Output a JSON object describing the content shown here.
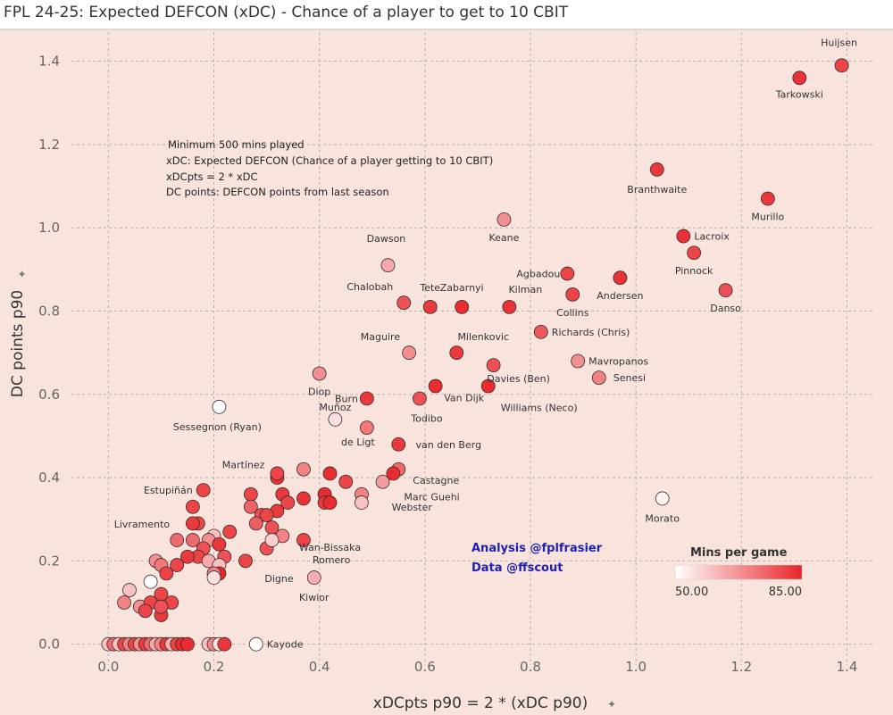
{
  "title": "FPL 24-25: Expected DEFCON (xDC) - Chance of a player to get to 10 CBIT",
  "notes": [
    "Minimum 500 mins played",
    "xDC: Expected DEFCON (Chance of a player getting to 10 CBIT)",
    "xDCpts = 2 * xDC",
    "DC points: DEFCON points from last season"
  ],
  "credits": [
    "Analysis @fplfrasier",
    "Data @ffscout"
  ],
  "legend": {
    "title": "Mins per game",
    "min_label": "50.00",
    "max_label": "85.00",
    "color_min": "#ffffff",
    "color_max": "#e8262a"
  },
  "chart_data": {
    "type": "scatter",
    "xlabel": "xDCpts p90 = 2 * (xDC p90)",
    "ylabel": "DC points p90",
    "xlim": [
      -0.07,
      1.45
    ],
    "ylim": [
      -0.05,
      1.47
    ],
    "x_ticks": [
      "0.0",
      "0.2",
      "0.4",
      "0.6",
      "0.8",
      "1.0",
      "1.2",
      "1.4"
    ],
    "y_ticks": [
      "0.0",
      "0.2",
      "0.4",
      "0.6",
      "0.8",
      "1.0",
      "1.2",
      "1.4"
    ],
    "grid": true,
    "color_by": "Mins per game",
    "color_range": [
      50,
      85
    ],
    "labeled_points": [
      {
        "name": "Huijsen",
        "x": 1.39,
        "y": 1.39,
        "mins": 80
      },
      {
        "name": "Tarkowski",
        "x": 1.31,
        "y": 1.36,
        "mins": 83
      },
      {
        "name": "Branthwaite",
        "x": 1.04,
        "y": 1.14,
        "mins": 82
      },
      {
        "name": "Murillo",
        "x": 1.25,
        "y": 1.07,
        "mins": 82
      },
      {
        "name": "Keane",
        "x": 0.75,
        "y": 1.02,
        "mins": 68
      },
      {
        "name": "Lacroix",
        "x": 1.09,
        "y": 0.98,
        "mins": 83
      },
      {
        "name": "Pinnock",
        "x": 1.11,
        "y": 0.94,
        "mins": 80
      },
      {
        "name": "Dawson",
        "x": 0.53,
        "y": 0.91,
        "mins": 64
      },
      {
        "name": "Agbadou",
        "x": 0.87,
        "y": 0.89,
        "mins": 80
      },
      {
        "name": "Andersen",
        "x": 0.97,
        "y": 0.88,
        "mins": 83
      },
      {
        "name": "Danso",
        "x": 1.17,
        "y": 0.85,
        "mins": 78
      },
      {
        "name": "Collins",
        "x": 0.88,
        "y": 0.84,
        "mins": 80
      },
      {
        "name": "Chalobah",
        "x": 0.56,
        "y": 0.82,
        "mins": 78
      },
      {
        "name": "Tete",
        "x": 0.61,
        "y": 0.81,
        "mins": 82
      },
      {
        "name": "Zabarnyi",
        "x": 0.67,
        "y": 0.81,
        "mins": 84
      },
      {
        "name": "Kilman",
        "x": 0.76,
        "y": 0.81,
        "mins": 83
      },
      {
        "name": "Richards (Chris)",
        "x": 0.82,
        "y": 0.75,
        "mins": 77
      },
      {
        "name": "Maguire",
        "x": 0.57,
        "y": 0.7,
        "mins": 68
      },
      {
        "name": "Milenkovic",
        "x": 0.66,
        "y": 0.7,
        "mins": 82
      },
      {
        "name": "Mavropanos",
        "x": 0.89,
        "y": 0.68,
        "mins": 68
      },
      {
        "name": "Senesi",
        "x": 0.93,
        "y": 0.64,
        "mins": 70
      },
      {
        "name": "Davies (Ben)",
        "x": 0.73,
        "y": 0.67,
        "mins": 78
      },
      {
        "name": "Williams (Neco)",
        "x": 0.72,
        "y": 0.62,
        "mins": 84
      },
      {
        "name": "Diop",
        "x": 0.4,
        "y": 0.65,
        "mins": 68
      },
      {
        "name": "Burn",
        "x": 0.49,
        "y": 0.59,
        "mins": 82
      },
      {
        "name": "Todibo",
        "x": 0.59,
        "y": 0.59,
        "mins": 78
      },
      {
        "name": "Van Dijk",
        "x": 0.62,
        "y": 0.62,
        "mins": 84
      },
      {
        "name": "Sessegnon (Ryan)",
        "x": 0.21,
        "y": 0.57,
        "mins": 50
      },
      {
        "name": "de Ligt",
        "x": 0.49,
        "y": 0.52,
        "mins": 72
      },
      {
        "name": "van den Berg",
        "x": 0.55,
        "y": 0.48,
        "mins": 82
      },
      {
        "name": "Muñoz",
        "x": 0.43,
        "y": 0.54,
        "mins": 55
      },
      {
        "name": "Castagne",
        "x": 0.55,
        "y": 0.42,
        "mins": 74
      },
      {
        "name": "Marc Guehi",
        "x": 0.54,
        "y": 0.41,
        "mins": 84
      },
      {
        "name": "Webster",
        "x": 0.52,
        "y": 0.39,
        "mins": 66
      },
      {
        "name": "Martínez",
        "x": 0.32,
        "y": 0.41,
        "mins": 80
      },
      {
        "name": "Estupiñán",
        "x": 0.18,
        "y": 0.37,
        "mins": 80
      },
      {
        "name": "Wan-Bissaka",
        "x": 0.42,
        "y": 0.34,
        "mins": 84
      },
      {
        "name": "Morato",
        "x": 1.05,
        "y": 0.35,
        "mins": 52
      },
      {
        "name": "Livramento",
        "x": 0.13,
        "y": 0.25,
        "mins": 74
      },
      {
        "name": "Romero",
        "x": 0.37,
        "y": 0.25,
        "mins": 80
      },
      {
        "name": "Digne",
        "x": 0.31,
        "y": 0.25,
        "mins": 58
      },
      {
        "name": "Kiwior",
        "x": 0.39,
        "y": 0.16,
        "mins": 63
      },
      {
        "name": "Kayode",
        "x": 0.28,
        "y": 0.0,
        "mins": 50
      }
    ],
    "unlabeled_points": [
      {
        "x": 0.32,
        "y": 0.4,
        "mins": 83
      },
      {
        "x": 0.37,
        "y": 0.42,
        "mins": 70
      },
      {
        "x": 0.42,
        "y": 0.41,
        "mins": 84
      },
      {
        "x": 0.45,
        "y": 0.39,
        "mins": 80
      },
      {
        "x": 0.27,
        "y": 0.36,
        "mins": 80
      },
      {
        "x": 0.33,
        "y": 0.36,
        "mins": 82
      },
      {
        "x": 0.37,
        "y": 0.35,
        "mins": 83
      },
      {
        "x": 0.41,
        "y": 0.36,
        "mins": 84
      },
      {
        "x": 0.48,
        "y": 0.36,
        "mins": 70
      },
      {
        "x": 0.41,
        "y": 0.34,
        "mins": 82
      },
      {
        "x": 0.34,
        "y": 0.34,
        "mins": 80
      },
      {
        "x": 0.48,
        "y": 0.34,
        "mins": 60
      },
      {
        "x": 0.27,
        "y": 0.33,
        "mins": 75
      },
      {
        "x": 0.29,
        "y": 0.31,
        "mins": 78
      },
      {
        "x": 0.32,
        "y": 0.32,
        "mins": 82
      },
      {
        "x": 0.3,
        "y": 0.31,
        "mins": 80
      },
      {
        "x": 0.28,
        "y": 0.29,
        "mins": 76
      },
      {
        "x": 0.31,
        "y": 0.28,
        "mins": 78
      },
      {
        "x": 0.16,
        "y": 0.33,
        "mins": 80
      },
      {
        "x": 0.17,
        "y": 0.29,
        "mins": 80
      },
      {
        "x": 0.16,
        "y": 0.29,
        "mins": 82
      },
      {
        "x": 0.2,
        "y": 0.26,
        "mins": 60
      },
      {
        "x": 0.23,
        "y": 0.27,
        "mins": 80
      },
      {
        "x": 0.16,
        "y": 0.25,
        "mins": 74
      },
      {
        "x": 0.19,
        "y": 0.25,
        "mins": 68
      },
      {
        "x": 0.21,
        "y": 0.24,
        "mins": 82
      },
      {
        "x": 0.33,
        "y": 0.26,
        "mins": 70
      },
      {
        "x": 0.18,
        "y": 0.23,
        "mins": 78
      },
      {
        "x": 0.17,
        "y": 0.21,
        "mins": 80
      },
      {
        "x": 0.3,
        "y": 0.23,
        "mins": 78
      },
      {
        "x": 0.22,
        "y": 0.21,
        "mins": 78
      },
      {
        "x": 0.15,
        "y": 0.21,
        "mins": 82
      },
      {
        "x": 0.26,
        "y": 0.2,
        "mins": 80
      },
      {
        "x": 0.19,
        "y": 0.2,
        "mins": 64
      },
      {
        "x": 0.21,
        "y": 0.19,
        "mins": 60
      },
      {
        "x": 0.09,
        "y": 0.2,
        "mins": 68
      },
      {
        "x": 0.1,
        "y": 0.19,
        "mins": 72
      },
      {
        "x": 0.13,
        "y": 0.19,
        "mins": 80
      },
      {
        "x": 0.11,
        "y": 0.17,
        "mins": 80
      },
      {
        "x": 0.21,
        "y": 0.17,
        "mins": 85
      },
      {
        "x": 0.2,
        "y": 0.17,
        "mins": 70
      },
      {
        "x": 0.2,
        "y": 0.16,
        "mins": 55
      },
      {
        "x": 0.08,
        "y": 0.15,
        "mins": 50
      },
      {
        "x": 0.04,
        "y": 0.13,
        "mins": 60
      },
      {
        "x": 0.1,
        "y": 0.12,
        "mins": 80
      },
      {
        "x": 0.06,
        "y": 0.09,
        "mins": 68
      },
      {
        "x": 0.08,
        "y": 0.1,
        "mins": 80
      },
      {
        "x": 0.12,
        "y": 0.1,
        "mins": 80
      },
      {
        "x": 0.07,
        "y": 0.08,
        "mins": 80
      },
      {
        "x": 0.1,
        "y": 0.07,
        "mins": 82
      },
      {
        "x": 0.1,
        "y": 0.09,
        "mins": 78
      },
      {
        "x": 0.03,
        "y": 0.1,
        "mins": 70
      },
      {
        "x": 0.0,
        "y": 0.0,
        "mins": 60
      },
      {
        "x": 0.01,
        "y": 0.0,
        "mins": 74
      },
      {
        "x": 0.02,
        "y": 0.0,
        "mins": 60
      },
      {
        "x": 0.03,
        "y": 0.0,
        "mins": 80
      },
      {
        "x": 0.04,
        "y": 0.0,
        "mins": 70
      },
      {
        "x": 0.05,
        "y": 0.0,
        "mins": 80
      },
      {
        "x": 0.06,
        "y": 0.0,
        "mins": 68
      },
      {
        "x": 0.07,
        "y": 0.0,
        "mins": 82
      },
      {
        "x": 0.08,
        "y": 0.0,
        "mins": 74
      },
      {
        "x": 0.09,
        "y": 0.0,
        "mins": 64
      },
      {
        "x": 0.1,
        "y": 0.0,
        "mins": 70
      },
      {
        "x": 0.11,
        "y": 0.0,
        "mins": 82
      },
      {
        "x": 0.12,
        "y": 0.0,
        "mins": 62
      },
      {
        "x": 0.13,
        "y": 0.0,
        "mins": 80
      },
      {
        "x": 0.14,
        "y": 0.0,
        "mins": 84
      },
      {
        "x": 0.15,
        "y": 0.0,
        "mins": 84
      },
      {
        "x": 0.19,
        "y": 0.0,
        "mins": 60
      },
      {
        "x": 0.2,
        "y": 0.0,
        "mins": 70
      },
      {
        "x": 0.21,
        "y": 0.0,
        "mins": 55
      },
      {
        "x": 0.22,
        "y": 0.0,
        "mins": 82
      }
    ]
  }
}
